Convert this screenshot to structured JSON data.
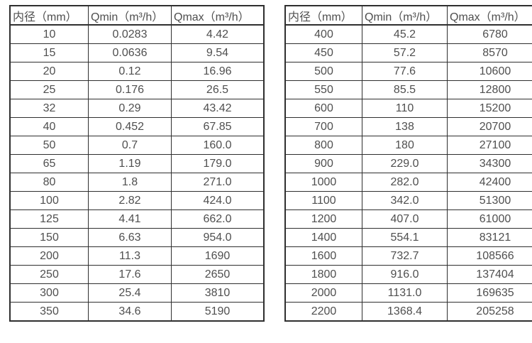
{
  "colors": {
    "background": "#ffffff",
    "border": "#2f2f2f",
    "text": "#4f4f4f"
  },
  "tables": [
    {
      "name": "flow-table-small-diameters",
      "headers": [
        "内径（mm）",
        "Qmin（m³/h）",
        "Qmax（m³/h）"
      ],
      "rows": [
        [
          "10",
          "0.0283",
          "4.42"
        ],
        [
          "15",
          "0.0636",
          "9.54"
        ],
        [
          "20",
          "0.12",
          "16.96"
        ],
        [
          "25",
          "0.176",
          "26.5"
        ],
        [
          "32",
          "0.29",
          "43.42"
        ],
        [
          "40",
          "0.452",
          "67.85"
        ],
        [
          "50",
          "0.7",
          "160.0"
        ],
        [
          "65",
          "1.19",
          "179.0"
        ],
        [
          "80",
          "1.8",
          "271.0"
        ],
        [
          "100",
          "2.82",
          "424.0"
        ],
        [
          "125",
          "4.41",
          "662.0"
        ],
        [
          "150",
          "6.63",
          "954.0"
        ],
        [
          "200",
          "11.3",
          "1690"
        ],
        [
          "250",
          "17.6",
          "2650"
        ],
        [
          "300",
          "25.4",
          "3810"
        ],
        [
          "350",
          "34.6",
          "5190"
        ]
      ]
    },
    {
      "name": "flow-table-large-diameters",
      "headers": [
        "内径（mm）",
        "Qmin（m³/h）",
        "Qmax（m³/h）"
      ],
      "rows": [
        [
          "400",
          "45.2",
          "6780"
        ],
        [
          "450",
          "57.2",
          "8570"
        ],
        [
          "500",
          "77.6",
          "10600"
        ],
        [
          "550",
          "85.5",
          "12800"
        ],
        [
          "600",
          "110",
          "15200"
        ],
        [
          "700",
          "138",
          "20700"
        ],
        [
          "800",
          "180",
          "27100"
        ],
        [
          "900",
          "229.0",
          "34300"
        ],
        [
          "1000",
          "282.0",
          "42400"
        ],
        [
          "1100",
          "342.0",
          "51300"
        ],
        [
          "1200",
          "407.0",
          "61000"
        ],
        [
          "1400",
          "554.1",
          "83121"
        ],
        [
          "1600",
          "732.7",
          "108566"
        ],
        [
          "1800",
          "916.0",
          "137404"
        ],
        [
          "2000",
          "1131.0",
          "169635"
        ],
        [
          "2200",
          "1368.4",
          "205258"
        ]
      ]
    }
  ]
}
